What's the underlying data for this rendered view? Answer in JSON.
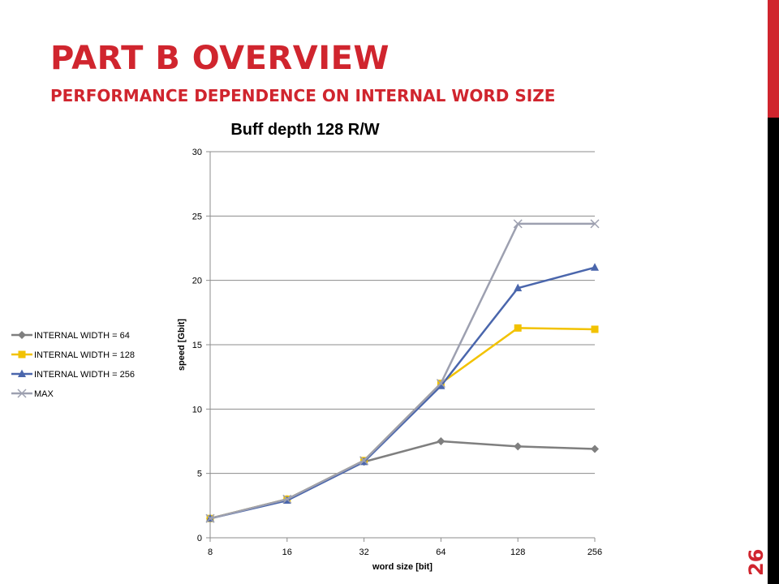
{
  "slide": {
    "title": "PART B OVERVIEW",
    "subtitle": "PERFORMANCE DEPENDENCE ON INTERNAL WORD SIZE",
    "slide_number": "26",
    "colors": {
      "accent": "#d0252e",
      "sidebar_top": "#d0252e",
      "sidebar_bottom": "#000000"
    }
  },
  "chart_data": {
    "type": "line",
    "title": "Buff depth 128 R/W",
    "xlabel": "word size [bit]",
    "ylabel": "speed [Gbit]",
    "categories": [
      "8",
      "16",
      "32",
      "64",
      "128",
      "256"
    ],
    "ylim": [
      0,
      30
    ],
    "yticks": [
      0,
      5,
      10,
      15,
      20,
      25,
      30
    ],
    "grid": true,
    "legend_position": "left",
    "series": [
      {
        "name": "INTERNAL WIDTH = 64",
        "marker": "diamond",
        "color": "#7f7f7f",
        "values": [
          1.5,
          3.0,
          5.9,
          7.5,
          7.1,
          6.9
        ]
      },
      {
        "name": "INTERNAL WIDTH = 128",
        "marker": "square",
        "color": "#f2c200",
        "values": [
          1.5,
          3.0,
          6.0,
          12.0,
          16.3,
          16.2
        ]
      },
      {
        "name": "INTERNAL WIDTH = 256",
        "marker": "triangle",
        "color": "#4a66ac",
        "values": [
          1.5,
          2.9,
          5.9,
          11.8,
          19.4,
          21.0
        ]
      },
      {
        "name": "MAX",
        "marker": "x",
        "color": "#9da0b0",
        "values": [
          1.5,
          3.0,
          6.0,
          12.0,
          24.4,
          24.4
        ]
      }
    ]
  }
}
